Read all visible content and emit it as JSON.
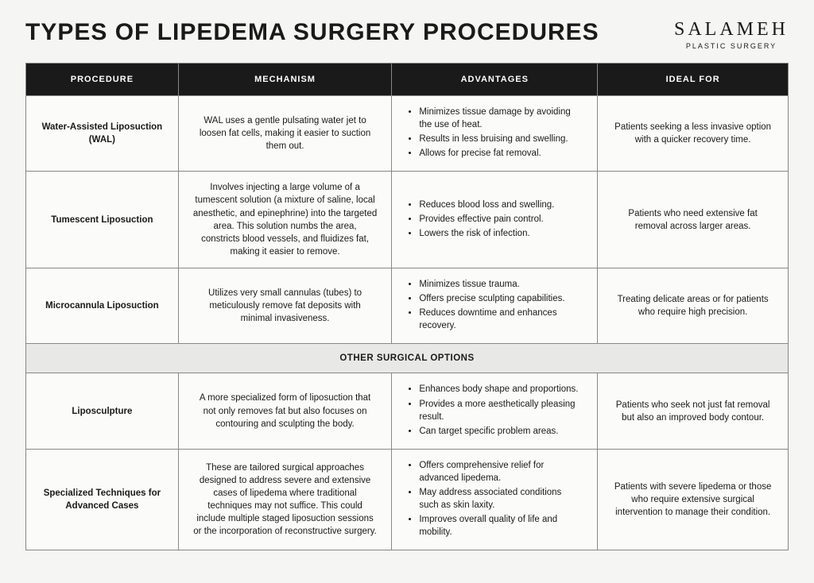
{
  "title": "TYPES OF LIPEDEMA SURGERY PROCEDURES",
  "logo": {
    "main": "SALAMEH",
    "sub": "PLASTIC SURGERY"
  },
  "columns": [
    "PROCEDURE",
    "MECHANISM",
    "ADVANTAGES",
    "IDEAL FOR"
  ],
  "sectionHeader": "OTHER SURGICAL OPTIONS",
  "rows": [
    {
      "procedure": "Water-Assisted Liposuction (WAL)",
      "mechanism": "WAL uses a gentle pulsating water jet to loosen fat cells, making it easier to suction them out.",
      "advantages": [
        "Minimizes tissue damage by avoiding the use of heat.",
        "Results in less bruising and swelling.",
        "Allows for precise fat removal."
      ],
      "idealFor": "Patients seeking a less invasive option with a quicker recovery time."
    },
    {
      "procedure": "Tumescent Liposuction",
      "mechanism": "Involves injecting a large volume of a tumescent solution (a mixture of saline, local anesthetic, and epinephrine) into the targeted area. This solution numbs the area, constricts blood vessels, and fluidizes fat, making it easier to remove.",
      "advantages": [
        "Reduces blood loss and swelling.",
        "Provides effective pain control.",
        "Lowers the risk of infection."
      ],
      "idealFor": "Patients who need extensive fat removal across larger areas."
    },
    {
      "procedure": "Microcannula Liposuction",
      "mechanism": "Utilizes very small cannulas (tubes) to meticulously remove fat deposits with minimal invasiveness.",
      "advantages": [
        "Minimizes tissue trauma.",
        "Offers precise sculpting capabilities.",
        "Reduces downtime and enhances recovery."
      ],
      "idealFor": "Treating delicate areas or for patients who require high precision."
    },
    {
      "procedure": "Liposculpture",
      "mechanism": "A more specialized form of liposuction that not only removes fat but also focuses on contouring and sculpting the body.",
      "advantages": [
        "Enhances body shape and proportions.",
        "Provides a more aesthetically pleasing result.",
        "Can target specific problem areas."
      ],
      "idealFor": "Patients who seek not just fat removal but also an improved body contour."
    },
    {
      "procedure": "Specialized Techniques for Advanced Cases",
      "mechanism": "These are tailored surgical approaches designed to address severe and extensive cases of lipedema where traditional techniques may not suffice. This could include multiple staged liposuction sessions or the incorporation of reconstructive surgery.",
      "advantages": [
        "Offers comprehensive relief for advanced lipedema.",
        "May address associated conditions such as skin laxity.",
        "Improves overall quality of life and mobility."
      ],
      "idealFor": "Patients with severe lipedema or those who require extensive surgical intervention to manage their condition."
    }
  ],
  "style": {
    "header_bg": "#1a1a1a",
    "header_fg": "#ffffff",
    "border_color": "#888888",
    "page_bg": "#f5f5f3",
    "section_bg": "#e8e8e6",
    "body_fontsize": 11.5,
    "title_fontsize": 30
  }
}
